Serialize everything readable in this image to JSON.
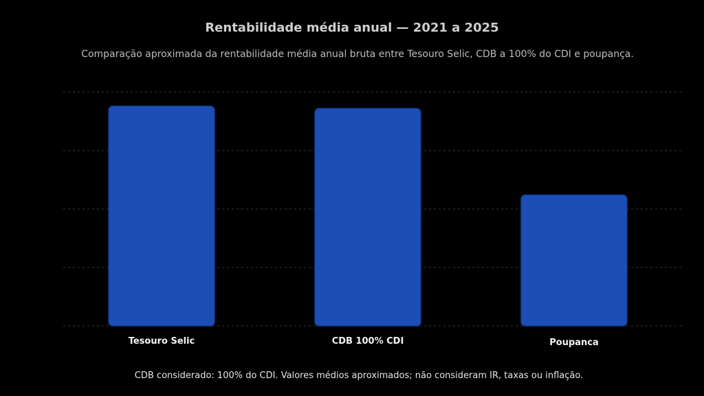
{
  "chart_data": {
    "type": "bar",
    "title": "Rentabilidade média anual — 2021 a 2025",
    "subtitle": "Comparação aproximada da rentabilidade média anual bruta entre Tesouro Selic, CDB a 100% do CDI e poupança.",
    "categories": [
      "Tesouro Selic",
      "CDB 100% CDI",
      "Poupanca"
    ],
    "values": [
      9.4,
      9.3,
      5.6
    ],
    "ylim": [
      0,
      10
    ],
    "xlabel": "",
    "ylabel": "",
    "grid": true,
    "colors": {
      "bar": "#1d4eb5",
      "bar_edge": "#143c96",
      "grid": "#3a3a3a",
      "background": "#000000"
    }
  },
  "footnote": "CDB considerado: 100% do CDI. Valores médios aproximados; não consideram IR, taxas ou inflação."
}
